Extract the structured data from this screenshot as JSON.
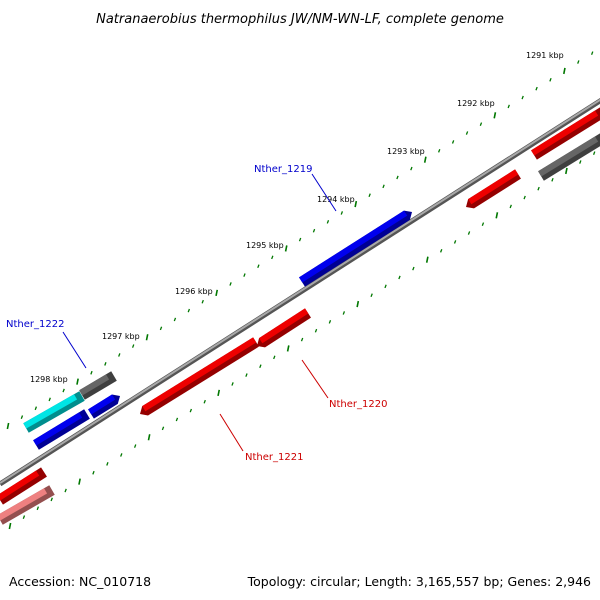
{
  "title": "Natranaerobius thermophilus JW/NM-WN-LF, complete genome",
  "footer": {
    "accession": "Accession: NC_010718",
    "stats": "Topology: circular; Length: 3,165,557 bp; Genes: 2,946"
  },
  "colors": {
    "forward_strand": "#0000ee",
    "reverse_strand": "#ee0000",
    "cyan_feature": "#00e5e5",
    "grey_feature": "#666666",
    "pink_feature": "#ee8080",
    "backbone": "#8a8a8a",
    "tick": "#007700"
  },
  "chart_data": {
    "type": "genome-map",
    "topology": "circular",
    "genome_length_bp": 3165557,
    "gene_count": 2946,
    "tick_unit": "kbp",
    "tick_labels": [
      "1291 kbp",
      "1292 kbp",
      "1293 kbp",
      "1294 kbp",
      "1295 kbp",
      "1296 kbp",
      "1297 kbp",
      "1298 kbp"
    ],
    "labeled_genes": [
      {
        "name": "Nther_1219",
        "strand": "forward",
        "color": "#0000cc"
      },
      {
        "name": "Nther_1220",
        "strand": "reverse",
        "color": "#cc0000"
      },
      {
        "name": "Nther_1221",
        "strand": "reverse",
        "color": "#cc0000"
      },
      {
        "name": "Nther_1222",
        "strand": "forward",
        "color": "#0000cc"
      }
    ]
  }
}
